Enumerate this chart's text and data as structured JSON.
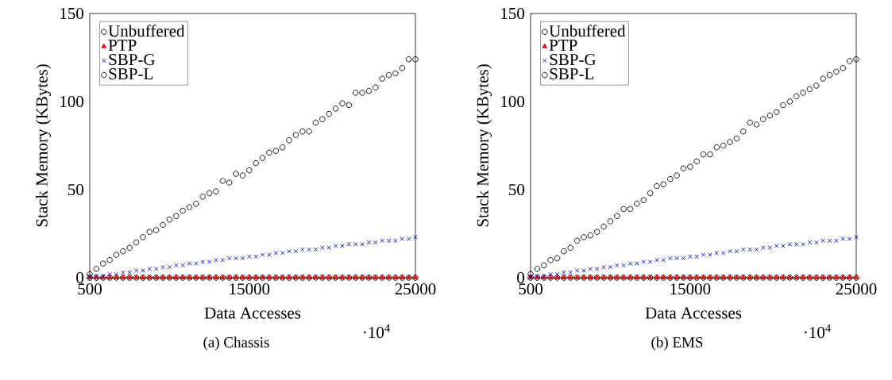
{
  "chart_data": [
    {
      "type": "scatter",
      "title": "(a) Chassis",
      "xlabel": "Data Accesses",
      "ylabel": "Stack Memory (KBytes)",
      "annotations": [
        "·10$^{4}$"
      ],
      "categories": [
        "500",
        null,
        null,
        null,
        null,
        null,
        null,
        null,
        null,
        null,
        null,
        null,
        null,
        null,
        null,
        null,
        null,
        null,
        null,
        null,
        null,
        null,
        null,
        null,
        "15000",
        null,
        null,
        null,
        null,
        null,
        null,
        null,
        null,
        null,
        null,
        null,
        null,
        null,
        null,
        null,
        null,
        null,
        null,
        null,
        null,
        null,
        null,
        null,
        null,
        "25000"
      ],
      "ylim": [
        0,
        150
      ],
      "yticks": [
        0,
        50,
        100,
        150
      ],
      "legend": "top left",
      "series": [
        {
          "name": "Unbuffered",
          "color": "#000000",
          "marker": "circle",
          "values": [
            0,
            0,
            0,
            0,
            0,
            0,
            0,
            0,
            0,
            0,
            0,
            0,
            0,
            0,
            0,
            0,
            0,
            0,
            0,
            0,
            0,
            0,
            0,
            0,
            0,
            0,
            0,
            0,
            0,
            0,
            0,
            0,
            0,
            0,
            0,
            0,
            0,
            0,
            0,
            0,
            0,
            0,
            0,
            0,
            0,
            0,
            0,
            0,
            0,
            0
          ]
        },
        {
          "name": "PTP",
          "color": "#ff0000",
          "marker": "triangle",
          "values": [
            0,
            0,
            0,
            0,
            0,
            0,
            0,
            0,
            0,
            0,
            0,
            0,
            0,
            0,
            0,
            0,
            0,
            0,
            0,
            0,
            0,
            0,
            0,
            0,
            0,
            0,
            0,
            0,
            0,
            0,
            0,
            0,
            0,
            0,
            0,
            0,
            0,
            0,
            0,
            0,
            0,
            0,
            0,
            0,
            0,
            0,
            0,
            0,
            0,
            0
          ]
        },
        {
          "name": "SBP-G",
          "color": "#0000ff",
          "marker": "cross",
          "values": [
            0.5,
            1,
            1,
            2,
            2,
            3,
            3,
            4,
            4,
            5,
            5,
            6,
            6,
            7,
            7,
            8,
            8,
            9,
            9,
            10,
            10,
            11,
            11,
            11,
            12,
            12,
            13,
            13,
            14,
            14,
            15,
            15,
            16,
            16,
            16,
            17,
            17,
            18,
            18,
            19,
            19,
            19,
            20,
            20,
            21,
            21,
            21,
            22,
            22,
            23
          ]
        },
        {
          "name": "SBP-L",
          "color": "#000000",
          "marker": "circle",
          "values": [
            2,
            5,
            8,
            10,
            13,
            15,
            17,
            20,
            23,
            26,
            27,
            30,
            33,
            35,
            38,
            40,
            42,
            46,
            48,
            49,
            55,
            54,
            59,
            58,
            61,
            65,
            68,
            71,
            72,
            74,
            78,
            81,
            83,
            83,
            88,
            90,
            93,
            96,
            99,
            98,
            105,
            105,
            106,
            108,
            113,
            115,
            116,
            119,
            124,
            124
          ]
        }
      ]
    },
    {
      "type": "scatter",
      "title": "(b) EMS",
      "xlabel": "Data Accesses",
      "ylabel": "Stack Memory (KBytes)",
      "annotations": [
        "·10$^{4}$"
      ],
      "categories": [
        "500",
        null,
        null,
        null,
        null,
        null,
        null,
        null,
        null,
        null,
        null,
        null,
        null,
        null,
        null,
        null,
        null,
        null,
        null,
        null,
        null,
        null,
        null,
        null,
        "15000",
        null,
        null,
        null,
        null,
        null,
        null,
        null,
        null,
        null,
        null,
        null,
        null,
        null,
        null,
        null,
        null,
        null,
        null,
        null,
        null,
        null,
        null,
        null,
        null,
        "25000"
      ],
      "ylim": [
        0,
        150
      ],
      "yticks": [
        0,
        50,
        100,
        150
      ],
      "legend": "top left",
      "series": [
        {
          "name": "Unbuffered",
          "color": "#000000",
          "marker": "circle",
          "values": [
            0,
            0,
            0,
            0,
            0,
            0,
            0,
            0,
            0,
            0,
            0,
            0,
            0,
            0,
            0,
            0,
            0,
            0,
            0,
            0,
            0,
            0,
            0,
            0,
            0,
            0,
            0,
            0,
            0,
            0,
            0,
            0,
            0,
            0,
            0,
            0,
            0,
            0,
            0,
            0,
            0,
            0,
            0,
            0,
            0,
            0,
            0,
            0,
            0,
            0
          ]
        },
        {
          "name": "PTP",
          "color": "#ff0000",
          "marker": "triangle",
          "values": [
            0,
            0,
            0,
            0,
            0,
            0,
            0,
            0,
            0,
            0,
            0,
            0,
            0,
            0,
            0,
            0,
            0,
            0,
            0,
            0,
            0,
            0,
            0,
            0,
            0,
            0,
            0,
            0,
            0,
            0,
            0,
            0,
            0,
            0,
            0,
            0,
            0,
            0,
            0,
            0,
            0,
            0,
            0,
            0,
            0,
            0,
            0,
            0,
            0,
            0
          ]
        },
        {
          "name": "SBP-G",
          "color": "#0000ff",
          "marker": "cross",
          "values": [
            0.5,
            1,
            1,
            2,
            2,
            3,
            3,
            4,
            4,
            5,
            5,
            6,
            6,
            7,
            7,
            8,
            8,
            9,
            9,
            10,
            10,
            11,
            11,
            11,
            12,
            12,
            13,
            13,
            14,
            14,
            15,
            15,
            16,
            16,
            16,
            17,
            17,
            18,
            18,
            19,
            19,
            19,
            20,
            20,
            21,
            21,
            21,
            22,
            22,
            23
          ]
        },
        {
          "name": "SBP-L",
          "color": "#000000",
          "marker": "circle",
          "values": [
            2,
            5,
            7,
            10,
            11,
            15,
            17,
            21,
            23,
            24,
            26,
            29,
            32,
            35,
            39,
            39,
            42,
            44,
            48,
            52,
            53,
            56,
            58,
            62,
            63,
            66,
            70,
            70,
            74,
            75,
            77,
            79,
            83,
            88,
            87,
            90,
            92,
            94,
            98,
            100,
            103,
            105,
            107,
            109,
            113,
            115,
            117,
            119,
            123,
            124
          ]
        }
      ]
    }
  ]
}
